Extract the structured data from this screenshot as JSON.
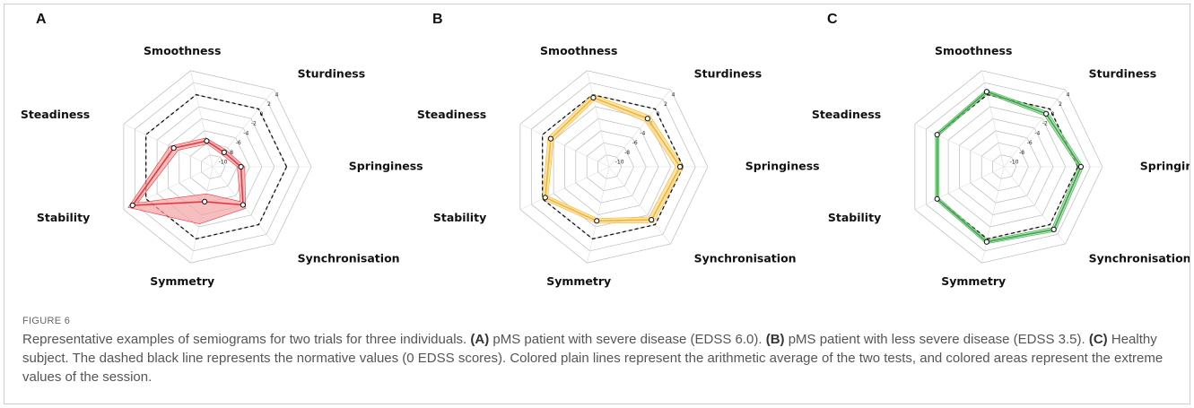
{
  "chart_data": [
    {
      "type": "radar",
      "panel": "A",
      "categories": [
        "Springiness",
        "Sturdiness",
        "Smoothness",
        "Steadiness",
        "Stability",
        "Symmetry",
        "Synchronisation"
      ],
      "values": [
        -7.4,
        -9,
        -7.7,
        -5,
        2.4,
        -6.2,
        -4.1
      ],
      "lower": [
        -8,
        -9.5,
        -8.2,
        -5.8,
        1.5,
        -7.5,
        -4.8
      ],
      "upper": [
        -6.8,
        -8.5,
        -7.2,
        -4.3,
        3.2,
        -2.5,
        -3.4
      ],
      "reference": 0,
      "color": "#e8383d",
      "fill": "#f4a3a5",
      "rlim": [
        -12,
        4
      ],
      "rticks": [
        -10,
        -8,
        -6,
        -4,
        -2,
        0,
        2,
        4
      ]
    },
    {
      "type": "radar",
      "panel": "B",
      "categories": [
        "Springiness",
        "Sturdiness",
        "Smoothness",
        "Steadiness",
        "Stability",
        "Symmetry",
        "Synchronisation"
      ],
      "values": [
        -0.5,
        -2,
        -0.5,
        -1.5,
        -0.5,
        -3,
        -1
      ],
      "lower": [
        -1.2,
        -2.6,
        -1,
        -2,
        -1,
        -3.4,
        -1.6
      ],
      "upper": [
        0,
        -1.4,
        0,
        -1,
        0,
        -2.6,
        -0.4
      ],
      "reference": 0,
      "color": "#f5b52e",
      "fill": "#f9d88c",
      "rlim": [
        -12,
        4
      ],
      "rticks": [
        -10,
        -8,
        -6,
        -4,
        -2,
        0,
        2,
        4
      ]
    },
    {
      "type": "radar",
      "panel": "C",
      "categories": [
        "Springiness",
        "Sturdiness",
        "Smoothness",
        "Steadiness",
        "Stability",
        "Symmetry",
        "Synchronisation"
      ],
      "values": [
        0.5,
        -1,
        0.5,
        0,
        0,
        0.5,
        1
      ],
      "lower": [
        0.1,
        -1.4,
        0.2,
        -0.3,
        -0.3,
        0.2,
        0.6
      ],
      "upper": [
        0.9,
        -0.6,
        0.8,
        0.3,
        0.3,
        0.8,
        1.4
      ],
      "reference": 0,
      "color": "#3aa845",
      "fill": "#9ad69f",
      "rlim": [
        -12,
        4
      ],
      "rticks": [
        -10,
        -8,
        -6,
        -4,
        -2,
        0,
        2,
        4
      ]
    }
  ],
  "figure_label": "FIGURE 6",
  "caption": [
    {
      "text": "Representative examples of semiograms for two trials for three individuals. ",
      "bold": false
    },
    {
      "text": "(A)",
      "bold": true
    },
    {
      "text": " pMS patient with severe disease (EDSS 6.0). ",
      "bold": false
    },
    {
      "text": "(B)",
      "bold": true
    },
    {
      "text": " pMS patient with less severe disease (EDSS 3.5). ",
      "bold": false
    },
    {
      "text": "(C)",
      "bold": true
    },
    {
      "text": " Healthy subject. The dashed black line represents the normative values (0 EDSS scores). Colored plain lines represent the arithmetic average of the two tests, and colored areas represent the extreme values of the session.",
      "bold": false
    }
  ]
}
